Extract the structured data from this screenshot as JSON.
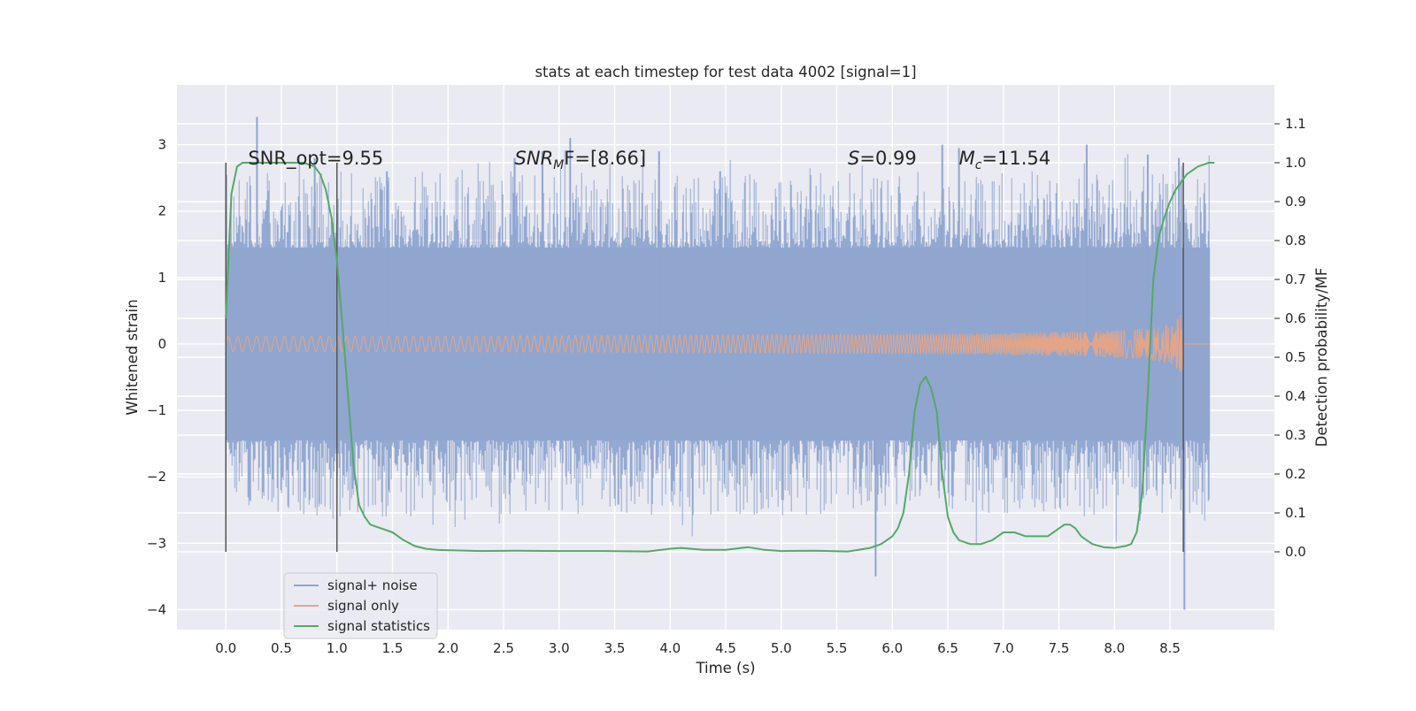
{
  "chart_data": {
    "type": "line",
    "title": "stats at each timestep for test data 4002 [signal=1]",
    "xlabel": "Time (s)",
    "ylabel": "Whitened strain",
    "ylabel_right": "Detection probability/MF",
    "xlim": [
      -0.44,
      9.44
    ],
    "ylim": [
      -4.3,
      3.9
    ],
    "ylim_right": [
      -0.2,
      1.2
    ],
    "xticks": [
      0.0,
      0.5,
      1.0,
      1.5,
      2.0,
      2.5,
      3.0,
      3.5,
      4.0,
      4.5,
      5.0,
      5.5,
      6.0,
      6.5,
      7.0,
      7.5,
      8.0,
      8.5
    ],
    "xtick_labels": [
      "0.0",
      "0.5",
      "1.0",
      "1.5",
      "2.0",
      "2.5",
      "3.0",
      "3.5",
      "4.0",
      "4.5",
      "5.0",
      "5.5",
      "6.0",
      "6.5",
      "7.0",
      "7.5",
      "8.0",
      "8.5"
    ],
    "yticks": [
      -4,
      -3,
      -2,
      -1,
      0,
      1,
      2,
      3
    ],
    "ytick_labels": [
      "−4",
      "−3",
      "−2",
      "−1",
      "0",
      "1",
      "2",
      "3"
    ],
    "yticks_right": [
      0.0,
      0.1,
      0.2,
      0.3,
      0.4,
      0.5,
      0.6,
      0.7,
      0.8,
      0.9,
      1.0,
      1.1
    ],
    "ytick_labels_right": [
      "0.0",
      "0.1",
      "0.2",
      "0.3",
      "0.4",
      "0.5",
      "0.6",
      "0.7",
      "0.8",
      "0.9",
      "1.0",
      "1.1"
    ],
    "grid": true,
    "legend_position": "lower-left",
    "series": [
      {
        "name": "signal+ noise",
        "color": "#8fa5cf",
        "axis": "left",
        "kind": "noise-band",
        "x_range": [
          0.0,
          8.86
        ],
        "band": [
          -1.45,
          1.45
        ],
        "peaks_x": [
          0.28,
          0.8,
          1.45,
          2.6,
          2.85,
          3.1,
          3.9,
          4.45,
          5.85,
          6.45,
          6.6,
          7.75,
          8.3,
          8.58,
          8.63
        ],
        "peaks_y": [
          3.42,
          2.8,
          2.6,
          2.8,
          2.9,
          3.1,
          2.9,
          2.6,
          -3.5,
          3.0,
          2.95,
          3.0,
          2.85,
          2.8,
          -4.0
        ]
      },
      {
        "name": "signal only",
        "color": "#e4a587",
        "axis": "left",
        "kind": "chirp",
        "x_range": [
          0.0,
          8.86
        ],
        "merger_time": 8.62,
        "peak_amplitude": 1.25
      },
      {
        "name": "signal statistics",
        "color": "#55a868",
        "axis": "right",
        "kind": "line",
        "x": [
          0.0,
          0.05,
          0.1,
          0.15,
          0.2,
          0.3,
          0.4,
          0.5,
          0.6,
          0.7,
          0.8,
          0.85,
          0.9,
          0.95,
          1.0,
          1.05,
          1.1,
          1.15,
          1.2,
          1.25,
          1.3,
          1.35,
          1.4,
          1.5,
          1.6,
          1.7,
          1.8,
          1.9,
          2.0,
          2.3,
          2.6,
          3.0,
          3.4,
          3.8,
          4.0,
          4.1,
          4.3,
          4.5,
          4.7,
          4.85,
          5.0,
          5.3,
          5.6,
          5.8,
          5.9,
          6.0,
          6.05,
          6.1,
          6.15,
          6.2,
          6.25,
          6.3,
          6.35,
          6.4,
          6.45,
          6.5,
          6.55,
          6.6,
          6.7,
          6.8,
          6.9,
          7.0,
          7.05,
          7.1,
          7.15,
          7.2,
          7.3,
          7.4,
          7.5,
          7.55,
          7.6,
          7.65,
          7.7,
          7.8,
          7.9,
          8.0,
          8.1,
          8.15,
          8.2,
          8.25,
          8.3,
          8.35,
          8.4,
          8.45,
          8.5,
          8.55,
          8.6,
          8.65,
          8.7,
          8.75,
          8.8,
          8.85,
          8.9
        ],
        "y": [
          0.6,
          0.92,
          0.99,
          1.0,
          1.0,
          1.0,
          1.0,
          1.0,
          1.0,
          1.0,
          0.99,
          0.97,
          0.93,
          0.86,
          0.75,
          0.58,
          0.4,
          0.22,
          0.12,
          0.09,
          0.07,
          0.065,
          0.06,
          0.05,
          0.03,
          0.015,
          0.008,
          0.005,
          0.004,
          0.002,
          0.003,
          0.002,
          0.002,
          0.001,
          0.008,
          0.01,
          0.005,
          0.005,
          0.012,
          0.005,
          0.002,
          0.003,
          0.001,
          0.01,
          0.02,
          0.04,
          0.06,
          0.1,
          0.2,
          0.36,
          0.43,
          0.45,
          0.42,
          0.36,
          0.2,
          0.09,
          0.05,
          0.03,
          0.02,
          0.02,
          0.03,
          0.05,
          0.05,
          0.05,
          0.045,
          0.04,
          0.04,
          0.04,
          0.06,
          0.07,
          0.07,
          0.06,
          0.04,
          0.02,
          0.012,
          0.01,
          0.015,
          0.02,
          0.05,
          0.15,
          0.4,
          0.7,
          0.81,
          0.86,
          0.9,
          0.93,
          0.95,
          0.97,
          0.98,
          0.99,
          0.995,
          1.0,
          1.0
        ]
      }
    ],
    "vertical_lines": [
      0.0,
      1.0,
      8.62
    ],
    "vertical_line_extent_right": [
      0.0,
      1.0
    ],
    "annotations": [
      {
        "id": "snr-opt",
        "text": "SNR_opt=9.55",
        "x": 0.2,
        "y": 2.7
      },
      {
        "id": "snr-mf",
        "prefix": "SNR",
        "sub": "M",
        "suffix": "F=[8.66]",
        "x": 2.6,
        "y": 2.7
      },
      {
        "id": "s",
        "prefix": "S",
        "sub": "",
        "suffix": "=0.99",
        "x": 5.6,
        "y": 2.7
      },
      {
        "id": "mc",
        "prefix": "M",
        "sub": "c",
        "suffix": "=11.54",
        "x": 6.6,
        "y": 2.7
      }
    ]
  }
}
